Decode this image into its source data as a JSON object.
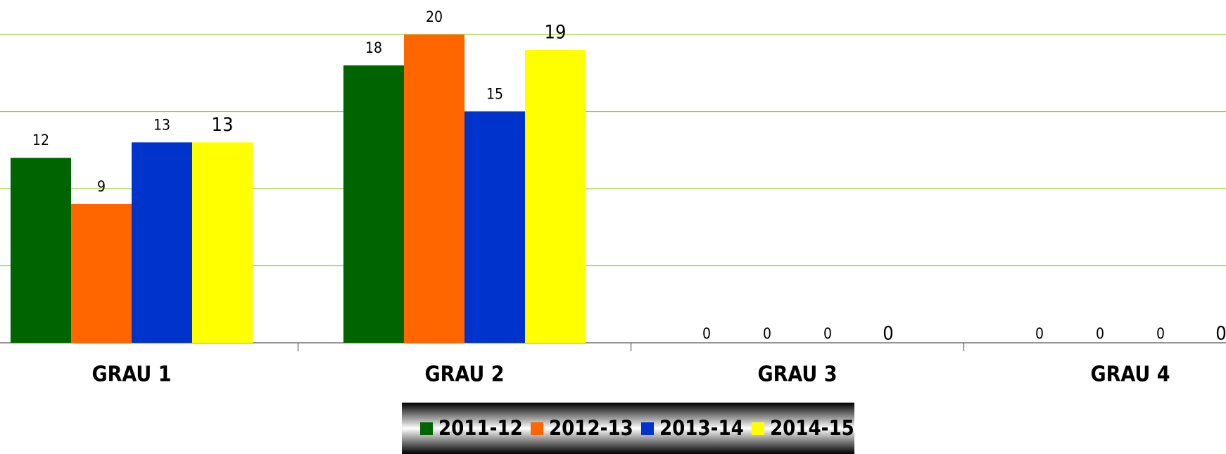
{
  "chart_data": {
    "type": "bar",
    "categories": [
      "GRAU 1",
      "GRAU 2",
      "GRAU 3",
      "GRAU 4"
    ],
    "series": [
      {
        "name": "2011-12",
        "color": "#006400",
        "values": [
          12,
          18,
          0,
          0
        ]
      },
      {
        "name": "2012-13",
        "color": "#ff6600",
        "values": [
          9,
          20,
          0,
          0
        ]
      },
      {
        "name": "2013-14",
        "color": "#0033cc",
        "values": [
          13,
          15,
          0,
          0
        ]
      },
      {
        "name": "2014-15",
        "color": "#ffff00",
        "values": [
          13,
          19,
          0,
          0
        ]
      }
    ],
    "ylim": [
      0,
      22
    ],
    "yticks": [
      0,
      5,
      10,
      15,
      20
    ],
    "grid": true,
    "grid_color": "#9acd32",
    "legend": "bottom"
  }
}
